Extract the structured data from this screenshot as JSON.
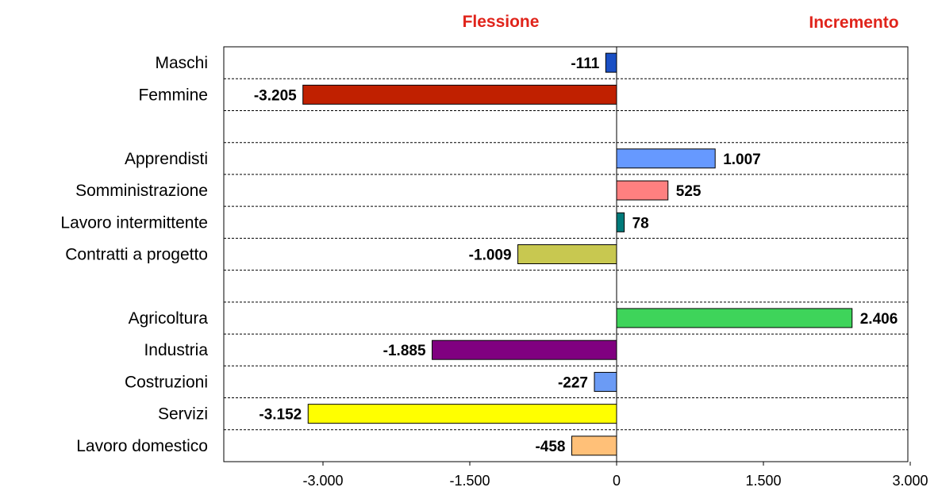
{
  "headers": {
    "left": "Flessione",
    "right": "Incremento",
    "color": "#e0241b"
  },
  "chart_data": {
    "type": "bar",
    "orientation": "horizontal",
    "xlim": [
      -3900,
      3000
    ],
    "grid": true,
    "ticks": [
      {
        "value": -3000,
        "label": "-3.000"
      },
      {
        "value": -1500,
        "label": "-1.500"
      },
      {
        "value": 0,
        "label": "0"
      },
      {
        "value": 1500,
        "label": "1.500"
      },
      {
        "value": 3000,
        "label": "3.000"
      }
    ],
    "rows": [
      {
        "category": "Maschi",
        "value": -111,
        "value_label": "-111",
        "color": "#1a4fc4"
      },
      {
        "category": "Femmine",
        "value": -3205,
        "value_label": "-3.205",
        "color": "#c02000"
      },
      {
        "category": "",
        "value": null,
        "value_label": "",
        "color": ""
      },
      {
        "category": "Apprendisti",
        "value": 1007,
        "value_label": "1.007",
        "color": "#6699ff"
      },
      {
        "category": "Somministrazione",
        "value": 525,
        "value_label": "525",
        "color": "#ff8080"
      },
      {
        "category": "Lavoro intermittente",
        "value": 78,
        "value_label": "78",
        "color": "#007a7a"
      },
      {
        "category": "Contratti a progetto",
        "value": -1009,
        "value_label": "-1.009",
        "color": "#c8c850"
      },
      {
        "category": "",
        "value": null,
        "value_label": "",
        "color": ""
      },
      {
        "category": "Agricoltura",
        "value": 2406,
        "value_label": "2.406",
        "color": "#3ed45a"
      },
      {
        "category": "Industria",
        "value": -1885,
        "value_label": "-1.885",
        "color": "#800080"
      },
      {
        "category": "Costruzioni",
        "value": -227,
        "value_label": "-227",
        "color": "#6b9bf5"
      },
      {
        "category": "Servizi",
        "value": -3152,
        "value_label": "-3.152",
        "color": "#ffff00"
      },
      {
        "category": "Lavoro domestico",
        "value": -458,
        "value_label": "-458",
        "color": "#ffc078"
      }
    ]
  }
}
